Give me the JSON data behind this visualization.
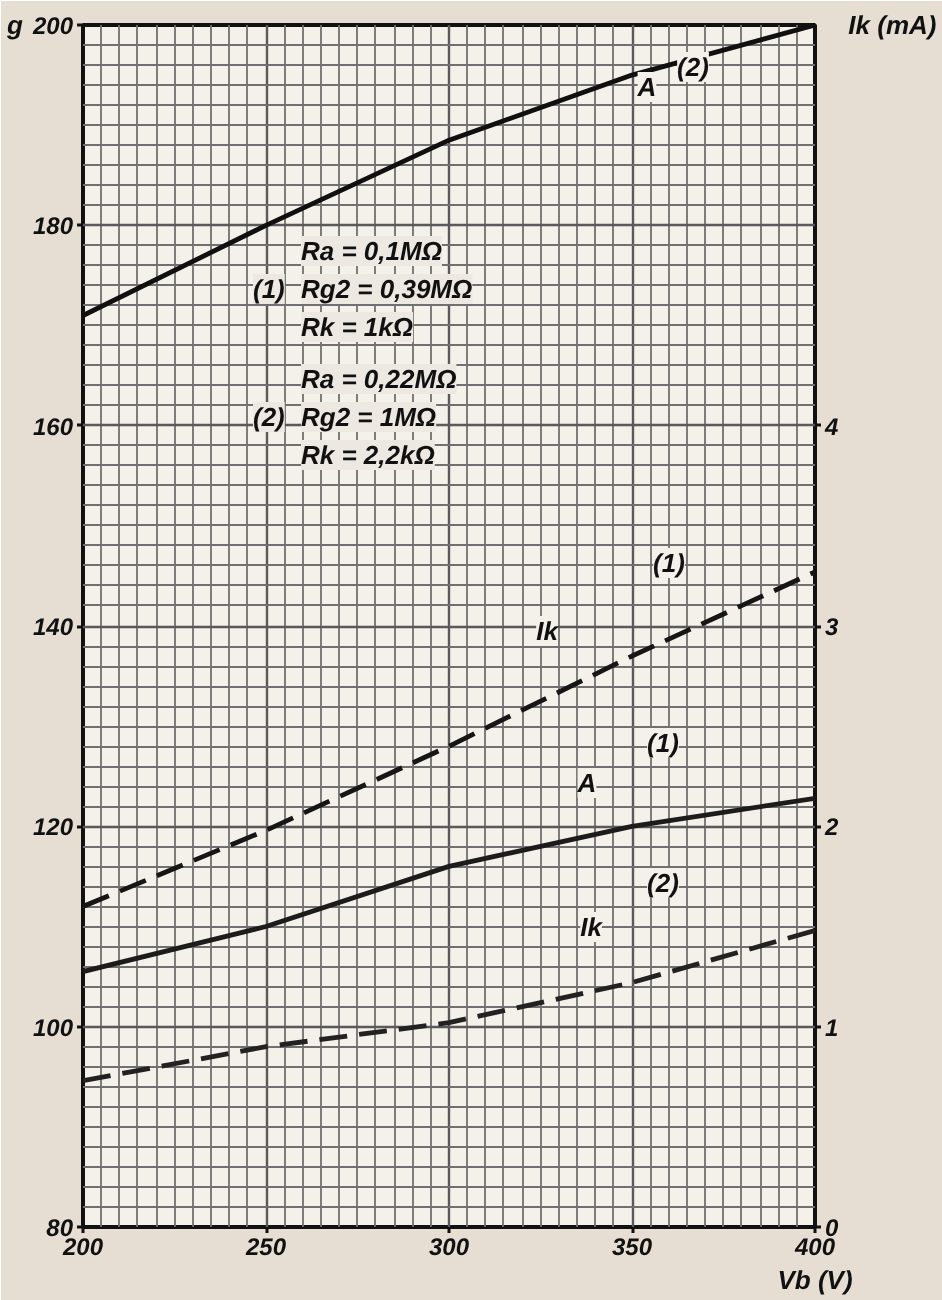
{
  "chart_data": {
    "type": "line",
    "ylabel": "g",
    "y2label": "Ik (mA)",
    "xlabel": "Vb (V)",
    "x": [
      200,
      250,
      300,
      350,
      400
    ],
    "series": [
      {
        "color": "#101010",
        "line_style": "solid",
        "values": [
          171,
          180,
          188.5,
          195,
          200
        ]
      },
      {
        "color": "#161616",
        "line_style": "dashed",
        "axis": "y2",
        "values": [
          1.6,
          1.98,
          2.4,
          2.85,
          3.27
        ]
      },
      {
        "color": "#1c1c1c",
        "line_style": "solid",
        "values": [
          105.5,
          110,
          116,
          120,
          122.8
        ]
      },
      {
        "color": "#222222",
        "line_style": "dashed",
        "axis": "y2",
        "values": [
          0.73,
          0.9,
          1.02,
          1.22,
          1.48
        ]
      }
    ],
    "xlim": [
      200,
      400
    ],
    "xticks": [
      200,
      250,
      300,
      350,
      400
    ],
    "ylim": [
      80,
      200
    ],
    "yticks": [
      80,
      100,
      120,
      140,
      160,
      180,
      200
    ],
    "y2lim": [
      0,
      6
    ],
    "y2ticks": [
      0,
      1,
      2,
      3,
      4
    ],
    "grid": true,
    "marker": "none",
    "annotations": [
      "A",
      "(2)",
      "Ik",
      "(1)",
      "A",
      "(1)",
      "Ik",
      "(2)",
      "(1)",
      "Ra = 0,1MΩ",
      "Rg2 = 0,39MΩ",
      "Rk = 1kΩ",
      "(2)",
      "Ra = 0,22MΩ",
      "Rg2 = 1MΩ",
      "Rk = 2,2kΩ"
    ]
  }
}
